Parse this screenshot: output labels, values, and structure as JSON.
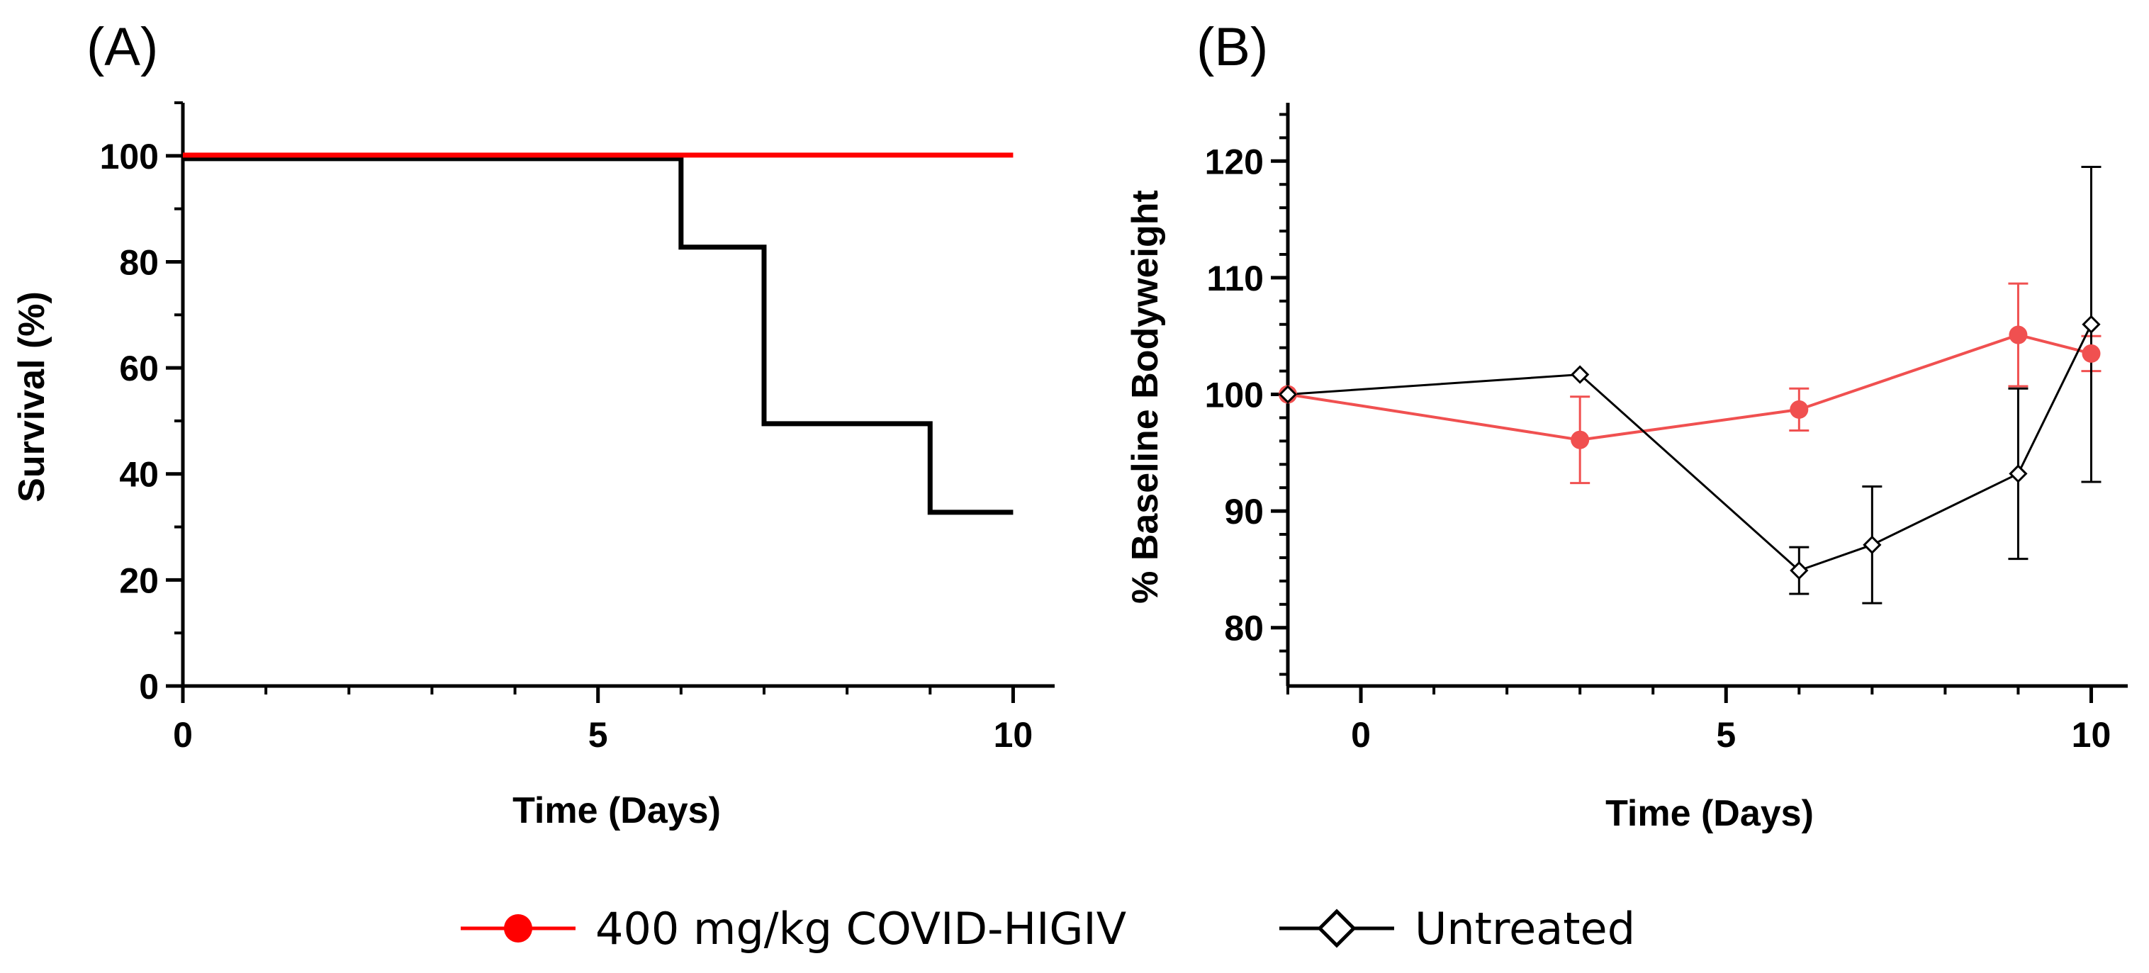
{
  "chart_data": [
    {
      "panel": "(A)",
      "type": "line",
      "step": true,
      "xlabel": "Time (Days)",
      "ylabel": "Survival (%)",
      "xlim": [
        0,
        10.5
      ],
      "ylim": [
        0,
        110
      ],
      "xticks": [
        0,
        5,
        10
      ],
      "yticks": [
        0,
        20,
        40,
        60,
        80,
        100
      ],
      "series": [
        {
          "name": "400 mg/kg COVID-HIGIV",
          "color": "#ff0000",
          "x": [
            0,
            10
          ],
          "y": [
            100,
            100
          ]
        },
        {
          "name": "Untreated",
          "color": "#000000",
          "x": [
            0,
            6,
            7,
            9,
            10
          ],
          "y": [
            100,
            83.3,
            50,
            33.3,
            33.3
          ]
        }
      ]
    },
    {
      "panel": "(B)",
      "type": "line",
      "xlabel": "Time  (Days)",
      "ylabel": "% Baseline Bodyweight",
      "xlim": [
        -1,
        10.5
      ],
      "ylim": [
        75,
        125
      ],
      "xticks": [
        0,
        5,
        10
      ],
      "yticks": [
        80,
        90,
        100,
        110,
        120
      ],
      "series": [
        {
          "name": "400 mg/kg COVID-HIGIV",
          "color": "#f05050",
          "marker": "circle",
          "x": [
            -1,
            3,
            6,
            9,
            10
          ],
          "y": [
            100,
            96.1,
            98.7,
            105.1,
            103.5
          ],
          "err": [
            0,
            3.7,
            1.8,
            4.4,
            1.5
          ]
        },
        {
          "name": "Untreated",
          "color": "#000000",
          "marker": "diamond-open",
          "x": [
            -1,
            3,
            6,
            7,
            9,
            10
          ],
          "y": [
            100,
            101.7,
            84.9,
            87.1,
            93.2,
            106
          ],
          "err": [
            0,
            0,
            2,
            5,
            7.3,
            13.5
          ]
        }
      ]
    }
  ],
  "legend": {
    "items": [
      {
        "label": "400 mg/kg COVID-HIGIV",
        "color": "#ff0000",
        "marker": "circle"
      },
      {
        "label": "Untreated",
        "color": "#000000",
        "marker": "diamond-open"
      }
    ]
  }
}
